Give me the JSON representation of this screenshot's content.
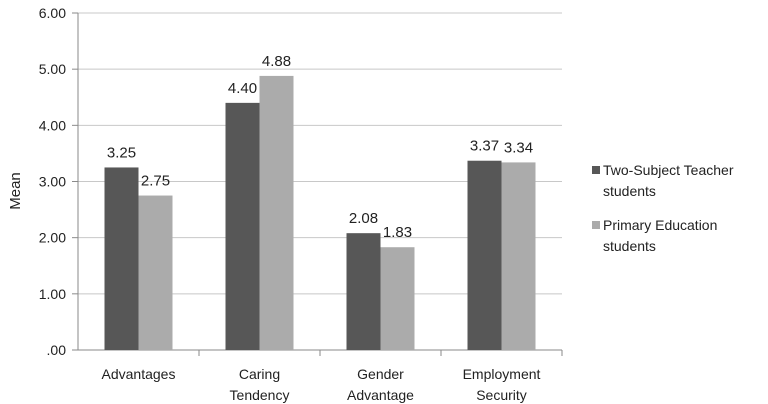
{
  "chart_data": {
    "type": "bar",
    "title": "",
    "xlabel": "",
    "ylabel": "Mean",
    "ylim": [
      0,
      6
    ],
    "yticks": [
      ".00",
      "1.00",
      "2.00",
      "3.00",
      "4.00",
      "5.00",
      "6.00"
    ],
    "grid": true,
    "legend_position": "right",
    "categories": [
      [
        "Advantages"
      ],
      [
        "Caring",
        "Tendency"
      ],
      [
        "Gender",
        "Advantage"
      ],
      [
        "Employment",
        "Security"
      ]
    ],
    "series": [
      {
        "name": "Two-Subject Teacher students",
        "name_lines": [
          "Two-Subject Teacher",
          "students"
        ],
        "color": "#575757",
        "values": [
          3.25,
          4.4,
          2.08,
          3.37
        ],
        "labels": [
          "3.25",
          "4.40",
          "2.08",
          "3.37"
        ]
      },
      {
        "name": "Primary Education students",
        "name_lines": [
          "Primary Education",
          "students"
        ],
        "color": "#ababab",
        "values": [
          2.75,
          4.88,
          1.83,
          3.34
        ],
        "labels": [
          "2.75",
          "4.88",
          "1.83",
          "3.34"
        ]
      }
    ]
  }
}
